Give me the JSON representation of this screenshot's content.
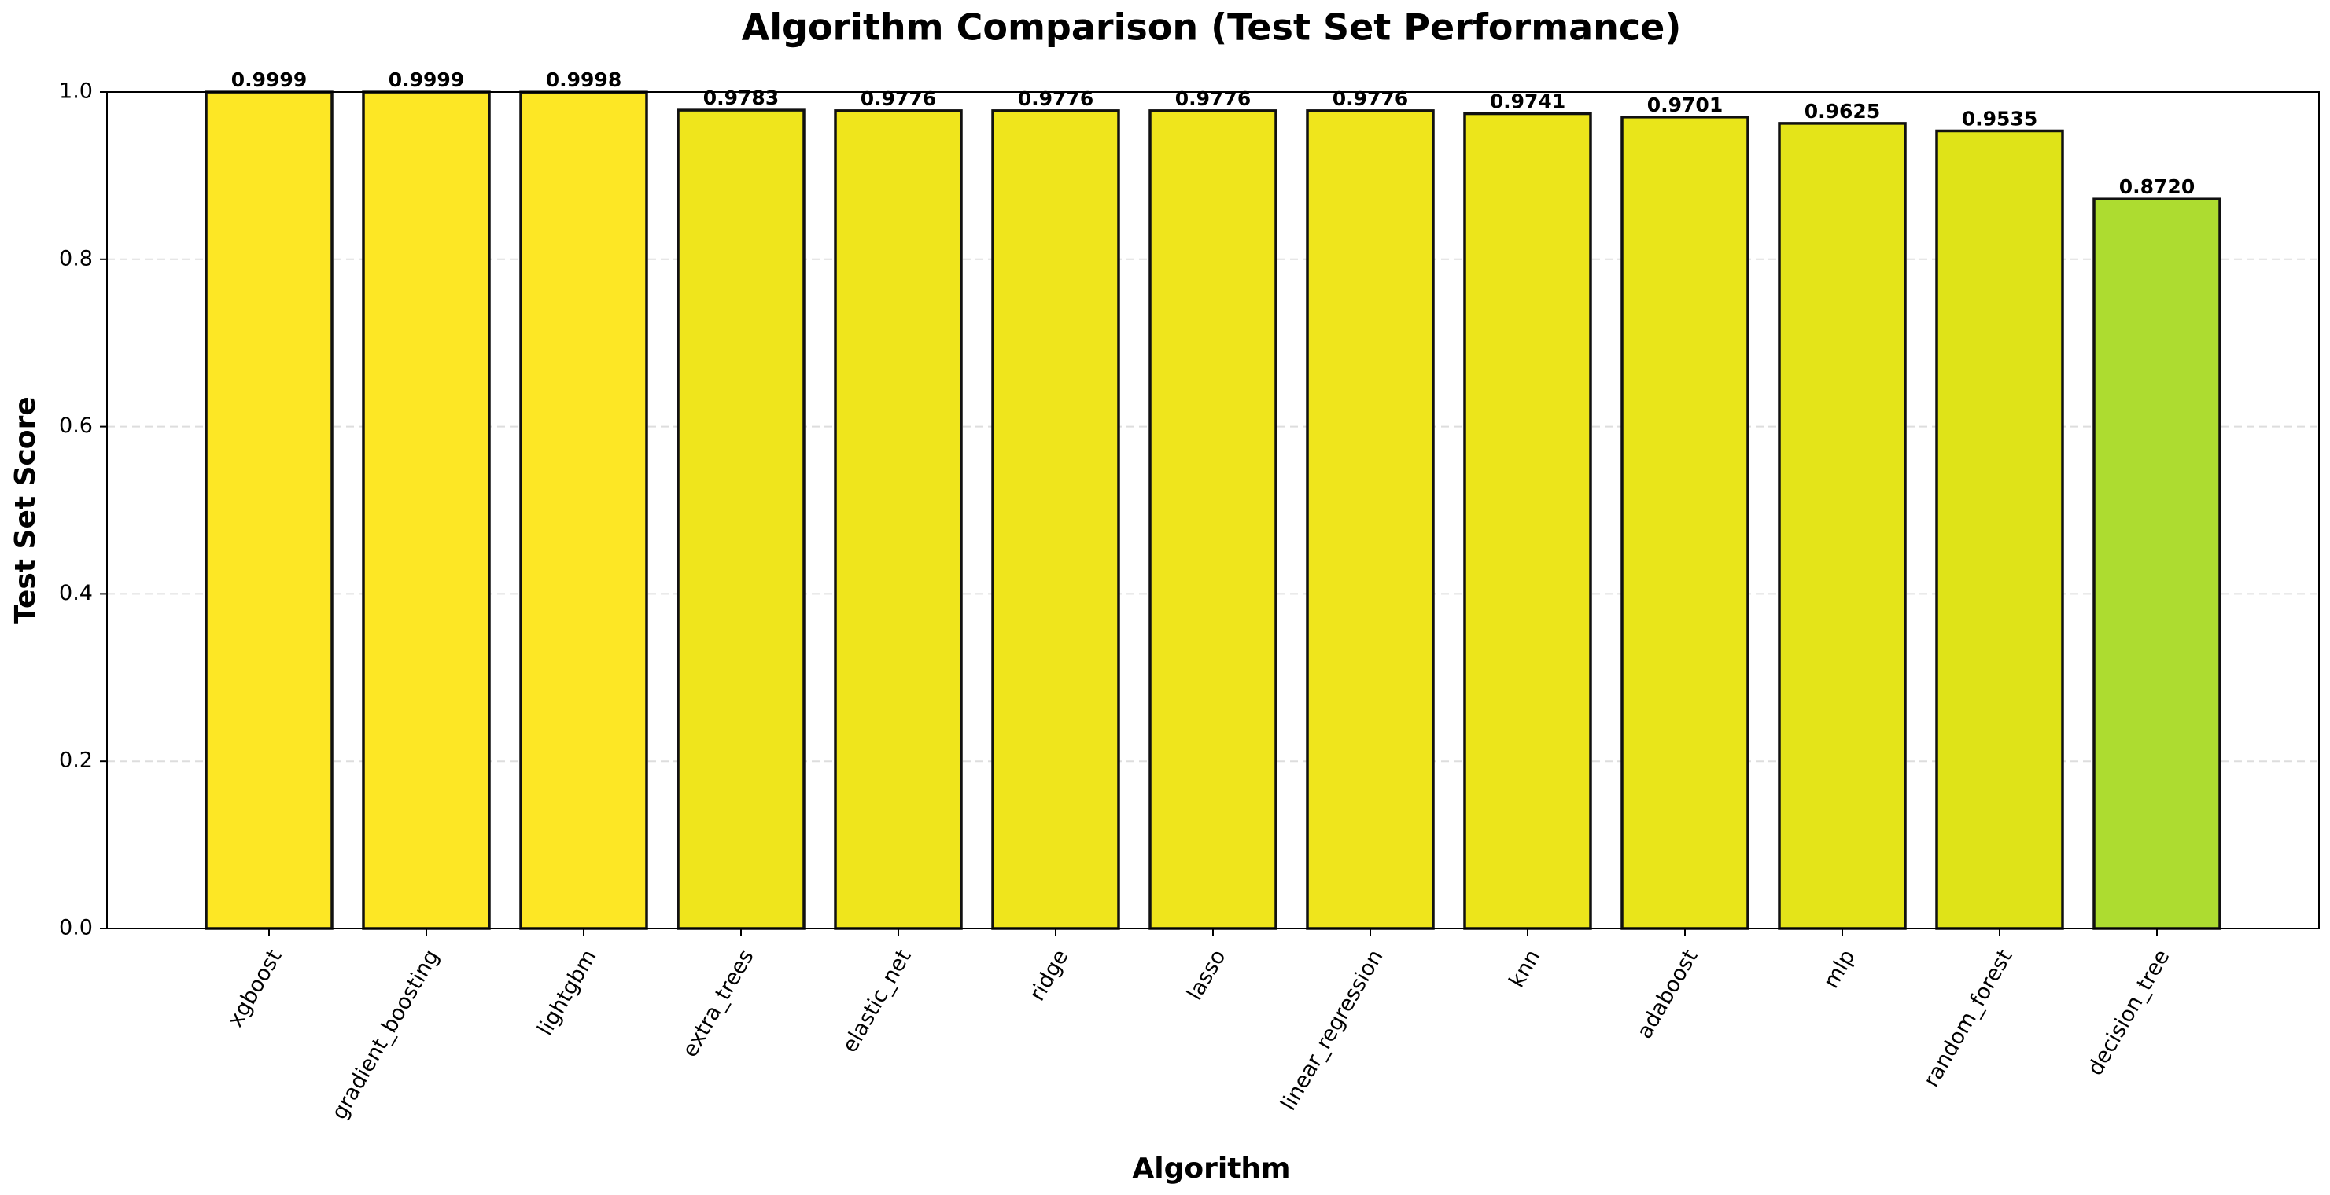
{
  "chart_data": {
    "type": "bar",
    "title": "Algorithm Comparison (Test Set Performance)",
    "x_label": "Algorithm",
    "y_label": "Test Set Score",
    "categories": [
      "xgboost",
      "gradient_boosting",
      "lightgbm",
      "extra_trees",
      "elastic_net",
      "ridge",
      "lasso",
      "linear_regression",
      "knn",
      "adaboost",
      "mlp",
      "random_forest",
      "decision_tree"
    ],
    "values": [
      0.9999,
      0.9999,
      0.9998,
      0.9783,
      0.9776,
      0.9776,
      0.9776,
      0.9776,
      0.9741,
      0.9701,
      0.9625,
      0.9535,
      0.872
    ],
    "value_labels": [
      "0.9999",
      "0.9999",
      "0.9998",
      "0.9783",
      "0.9776",
      "0.9776",
      "0.9776",
      "0.9776",
      "0.9741",
      "0.9701",
      "0.9625",
      "0.9535",
      "0.8720"
    ],
    "colors": [
      "#fde725",
      "#fde725",
      "#fde725",
      "#efe51c",
      "#efe51c",
      "#efe51c",
      "#efe51c",
      "#efe51c",
      "#ece51b",
      "#e9e51a",
      "#e4e419",
      "#dfe318",
      "#addc30"
    ],
    "ylim": [
      0,
      1
    ],
    "yticks": [
      {
        "value": 0,
        "label": "0.0"
      },
      0.2,
      0.4,
      0.6,
      0.8,
      {
        "value": 1,
        "label": "1.0"
      }
    ],
    "grid": true
  }
}
